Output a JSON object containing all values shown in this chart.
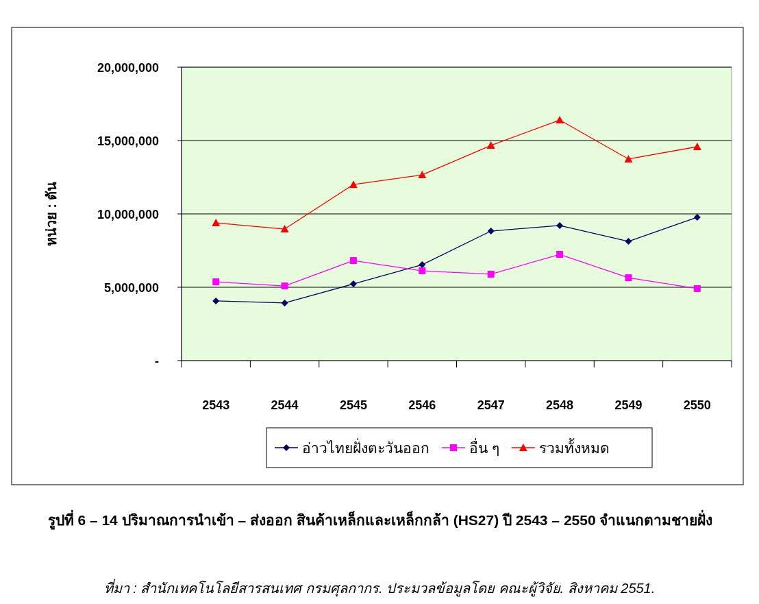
{
  "chart_data": {
    "type": "line",
    "title": "รูปที่ 6 –  14 ปริมาณการนำเข้า – ส่งออก สินค้าเหล็กและเหล็กกล้า (HS27)  ปี 2543 – 2550 จำแนกตามชายฝั่ง",
    "ylabel": "หน่วย : ตัน",
    "annotations": [
      "ที่มา : สำนักเทคโนโลยีสารสนเทศ กรมศุลกากร. ประมวลข้อมูลโดย คณะผู้วิจัย. สิงหาคม 2551."
    ],
    "categories": [
      "2543",
      "2544",
      "2545",
      "2546",
      "2547",
      "2548",
      "2549",
      "2550"
    ],
    "series": [
      {
        "name": "อ่าวไทยฝั่งตะวันออก",
        "color": "#000066",
        "marker": "diamond",
        "values": [
          4070000,
          3930000,
          5230000,
          6540000,
          8830000,
          9210000,
          8130000,
          9770000
        ]
      },
      {
        "name": "อื่น ๆ",
        "color": "#ff00ff",
        "marker": "square",
        "values": [
          5370000,
          5090000,
          6820000,
          6120000,
          5890000,
          7240000,
          5650000,
          4910000
        ]
      },
      {
        "name": "รวมทั้งหมด",
        "color": "#ff0000",
        "marker": "triangle",
        "values": [
          9390000,
          8970000,
          12000000,
          12660000,
          14670000,
          16400000,
          13740000,
          14580000
        ]
      }
    ],
    "ylim": [
      0,
      20000000
    ],
    "yticks": [
      {
        "value": 0,
        "label": "-"
      },
      {
        "value": 5000000,
        "label": "5,000,000"
      },
      {
        "value": 10000000,
        "label": "10,000,000"
      },
      {
        "value": 15000000,
        "label": "15,000,000"
      },
      {
        "value": 20000000,
        "label": "20,000,000"
      }
    ],
    "grid": "y",
    "legend": "bottom"
  }
}
